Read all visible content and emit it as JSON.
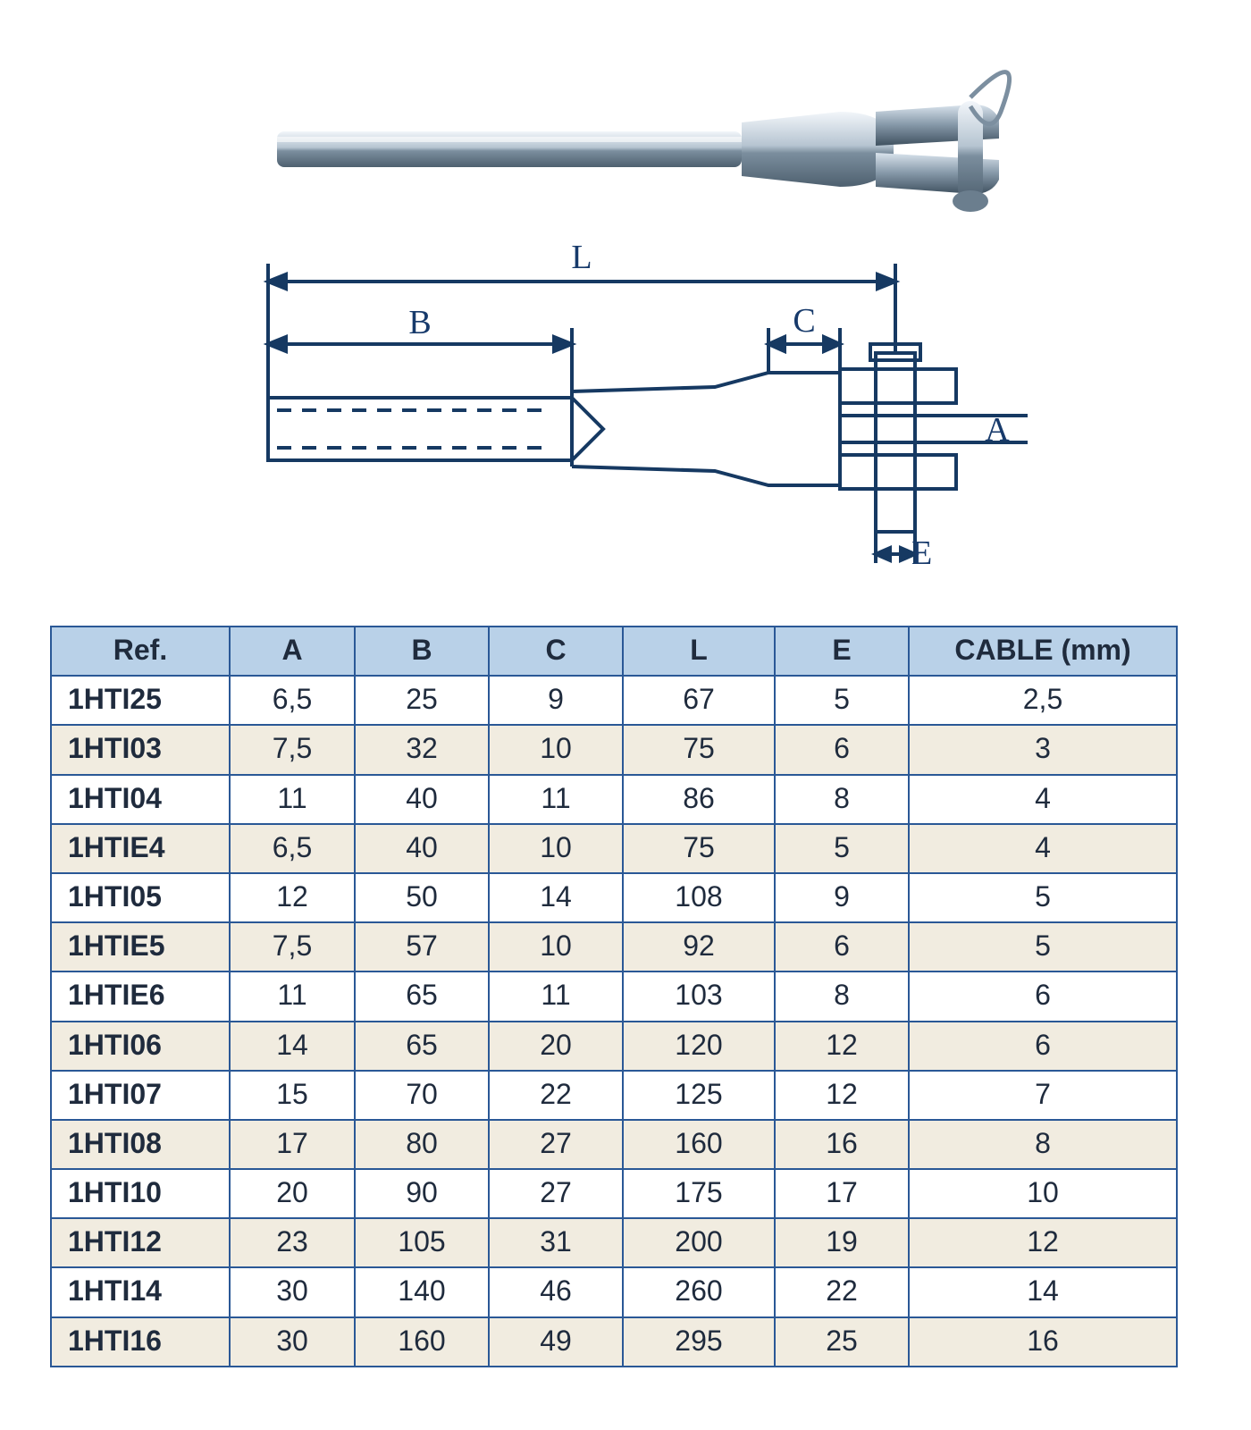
{
  "diagram": {
    "labels": {
      "L": "L",
      "B": "B",
      "C": "C",
      "A": "A",
      "E": "E"
    },
    "label_font_size": 38,
    "label_color": "#173a6b",
    "line_color": "#163962",
    "photo_gradient": [
      "#e6eef5",
      "#94a9bb",
      "#5f7386"
    ]
  },
  "table": {
    "columns": [
      "Ref.",
      "A",
      "B",
      "C",
      "L",
      "E",
      "CABLE (mm)"
    ],
    "rows": [
      [
        "1HTI25",
        "6,5",
        "25",
        "9",
        "67",
        "5",
        "2,5"
      ],
      [
        "1HTI03",
        "7,5",
        "32",
        "10",
        "75",
        "6",
        "3"
      ],
      [
        "1HTI04",
        "11",
        "40",
        "11",
        "86",
        "8",
        "4"
      ],
      [
        "1HTIE4",
        "6,5",
        "40",
        "10",
        "75",
        "5",
        "4"
      ],
      [
        "1HTI05",
        "12",
        "50",
        "14",
        "108",
        "9",
        "5"
      ],
      [
        "1HTIE5",
        "7,5",
        "57",
        "10",
        "92",
        "6",
        "5"
      ],
      [
        "1HTIE6",
        "11",
        "65",
        "11",
        "103",
        "8",
        "6"
      ],
      [
        "1HTI06",
        "14",
        "65",
        "20",
        "120",
        "12",
        "6"
      ],
      [
        "1HTI07",
        "15",
        "70",
        "22",
        "125",
        "12",
        "7"
      ],
      [
        "1HTI08",
        "17",
        "80",
        "27",
        "160",
        "16",
        "8"
      ],
      [
        "1HTI10",
        "20",
        "90",
        "27",
        "175",
        "17",
        "10"
      ],
      [
        "1HTI12",
        "23",
        "105",
        "31",
        "200",
        "19",
        "12"
      ],
      [
        "1HTI14",
        "30",
        "140",
        "46",
        "260",
        "22",
        "14"
      ],
      [
        "1HTI16",
        "30",
        "160",
        "49",
        "295",
        "25",
        "16"
      ]
    ],
    "header_bg": "#b9d1e8",
    "row_bg_odd": "#ffffff",
    "row_bg_even": "#f1ece0",
    "border_color": "#2a5896",
    "text_color": "#1f2b3d",
    "font_size": 32,
    "col_classes": [
      "col-ref",
      "col-a",
      "col-b",
      "col-c",
      "col-l",
      "col-e",
      "col-cable"
    ]
  }
}
